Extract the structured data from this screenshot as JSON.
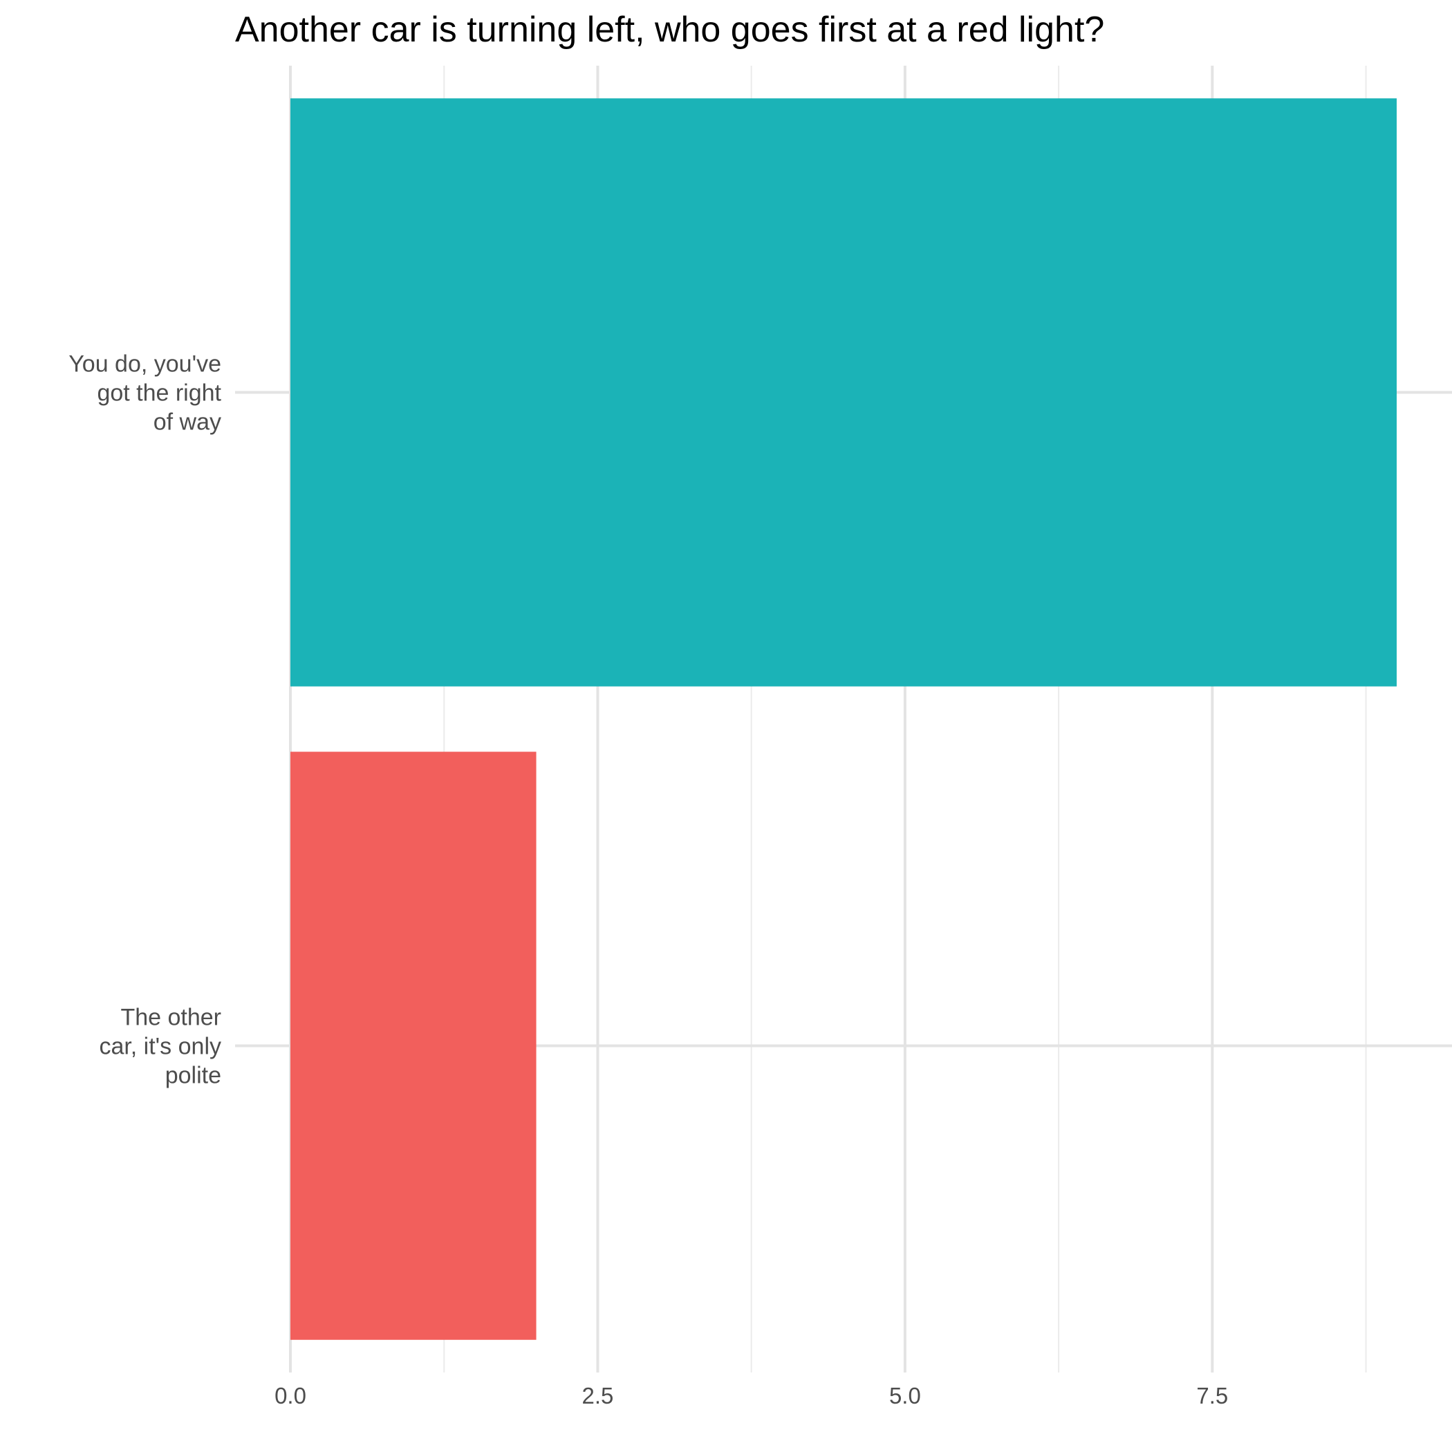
{
  "chart_data": {
    "type": "bar",
    "orientation": "horizontal",
    "title": "Another car is turning left, who goes first at a red light?",
    "xlabel": "",
    "ylabel": "",
    "categories": [
      [
        "You do, you've",
        "got the right",
        "of way"
      ],
      [
        "The other",
        "car, it's only",
        "polite"
      ]
    ],
    "values": [
      9,
      2
    ],
    "colors": [
      "#1BB3B7",
      "#F25F5C"
    ],
    "xlim": [
      -0.45,
      9.45
    ],
    "x_ticks": [
      0.0,
      2.5,
      5.0,
      7.5
    ],
    "x_tick_labels": [
      "0.0",
      "2.5",
      "5.0",
      "7.5"
    ],
    "x_minor_ticks": [
      1.25,
      3.75,
      6.25,
      8.75
    ],
    "grid": true,
    "legend": "none"
  }
}
